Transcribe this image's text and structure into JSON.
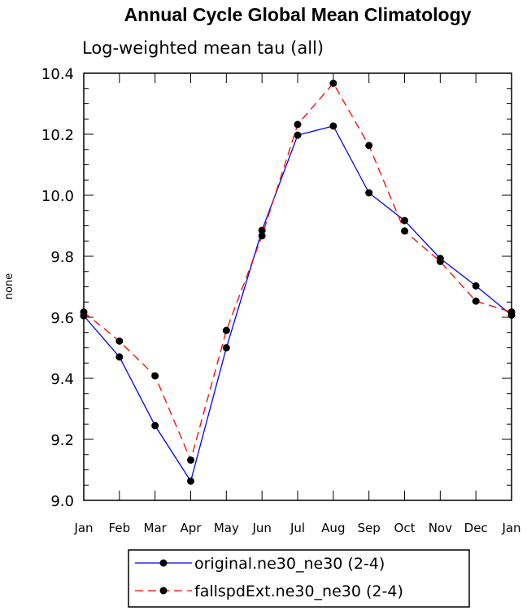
{
  "chart_data": {
    "type": "line",
    "title": "Annual Cycle Global Mean Climatology",
    "subtitle": "Log-weighted mean tau (all)",
    "xlabel": "",
    "ylabel": "none",
    "categories": [
      "Jan",
      "Feb",
      "Mar",
      "Apr",
      "May",
      "Jun",
      "Jul",
      "Aug",
      "Sep",
      "Oct",
      "Nov",
      "Dec",
      "Jan"
    ],
    "ylim": [
      9.0,
      10.4
    ],
    "yticks": [
      "9.0",
      "9.2",
      "9.4",
      "9.6",
      "9.8",
      "10.0",
      "10.2",
      "10.4"
    ],
    "grid": false,
    "legend_placement": "bottom",
    "series": [
      {
        "name": "original.ne30_ne30 (2-4)",
        "color": "#0000ff",
        "dash": "solid",
        "values": [
          9.605,
          9.47,
          9.245,
          9.063,
          9.5,
          9.885,
          10.197,
          10.227,
          10.008,
          9.917,
          9.793,
          9.703,
          9.607
        ]
      },
      {
        "name": "fallspdExt.ne30_ne30 (2-4)",
        "color": "#ff0000",
        "dash": "dashed",
        "values": [
          9.617,
          9.522,
          9.408,
          9.132,
          9.557,
          9.867,
          10.232,
          10.367,
          10.163,
          9.883,
          9.783,
          9.653,
          9.617
        ]
      }
    ]
  }
}
